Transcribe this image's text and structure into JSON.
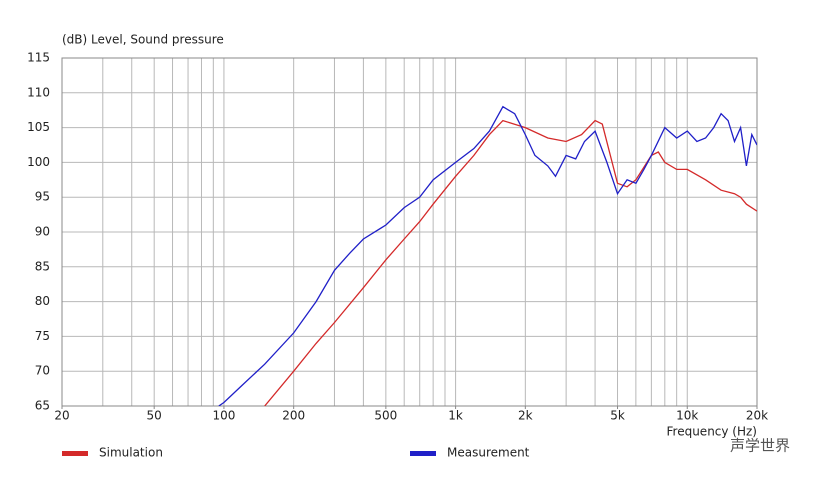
{
  "chart_data": {
    "type": "line",
    "y_axis_label": "(dB)  Level, Sound pressure",
    "x_axis_label": "Frequency (Hz)",
    "xlim": [
      20,
      20000
    ],
    "ylim": [
      65,
      115
    ],
    "x_log": true,
    "grid": true,
    "xticks": [
      20,
      50,
      100,
      200,
      500,
      {
        "value": 1000,
        "label": "1k"
      },
      {
        "value": 2000,
        "label": "2k"
      },
      {
        "value": 5000,
        "label": "5k"
      },
      {
        "value": 10000,
        "label": "10k"
      },
      {
        "value": 20000,
        "label": "20k"
      }
    ],
    "xgrid": [
      20,
      30,
      40,
      50,
      60,
      70,
      80,
      90,
      100,
      200,
      300,
      400,
      500,
      600,
      700,
      800,
      900,
      1000,
      2000,
      3000,
      4000,
      5000,
      6000,
      7000,
      8000,
      9000,
      10000,
      20000
    ],
    "yticks": [
      65,
      70,
      75,
      80,
      85,
      90,
      95,
      100,
      105,
      110,
      115
    ],
    "watermark": "声学世界",
    "series": [
      {
        "name": "Simulation",
        "color": "#d42a2a",
        "x": [
          150,
          200,
          250,
          300,
          400,
          500,
          600,
          700,
          800,
          1000,
          1200,
          1400,
          1600,
          2000,
          2500,
          3000,
          3500,
          4000,
          4300,
          5000,
          5500,
          6000,
          7000,
          7500,
          8000,
          9000,
          10000,
          12000,
          14000,
          16000,
          17000,
          18000,
          20000
        ],
        "values": [
          65,
          70,
          74,
          77,
          82,
          86,
          89,
          91.5,
          94,
          98,
          101,
          104,
          106,
          105,
          103.5,
          103,
          104,
          106,
          105.5,
          97,
          96.5,
          97.5,
          101,
          101.5,
          100,
          99,
          99,
          97.5,
          96,
          95.5,
          95,
          94,
          93
        ]
      },
      {
        "name": "Measurement",
        "color": "#2020c8",
        "x": [
          95,
          100,
          120,
          150,
          200,
          250,
          300,
          350,
          400,
          500,
          600,
          700,
          800,
          1000,
          1200,
          1400,
          1600,
          1800,
          2000,
          2200,
          2500,
          2700,
          3000,
          3300,
          3600,
          4000,
          4500,
          5000,
          5500,
          6000,
          6500,
          7000,
          8000,
          9000,
          10000,
          11000,
          12000,
          13000,
          14000,
          15000,
          16000,
          17000,
          18000,
          19000,
          20000
        ],
        "values": [
          65,
          65.5,
          68,
          71,
          75.5,
          80,
          84.5,
          87,
          89,
          91,
          93.5,
          95,
          97.5,
          100,
          102,
          104.5,
          108,
          107,
          104,
          101,
          99.5,
          98,
          101,
          100.5,
          103,
          104.5,
          100,
          95.5,
          97.5,
          97,
          99,
          101,
          105,
          103.5,
          104.5,
          103,
          103.5,
          105,
          107,
          106,
          103,
          105,
          99.5,
          104,
          102.5
        ]
      }
    ]
  }
}
